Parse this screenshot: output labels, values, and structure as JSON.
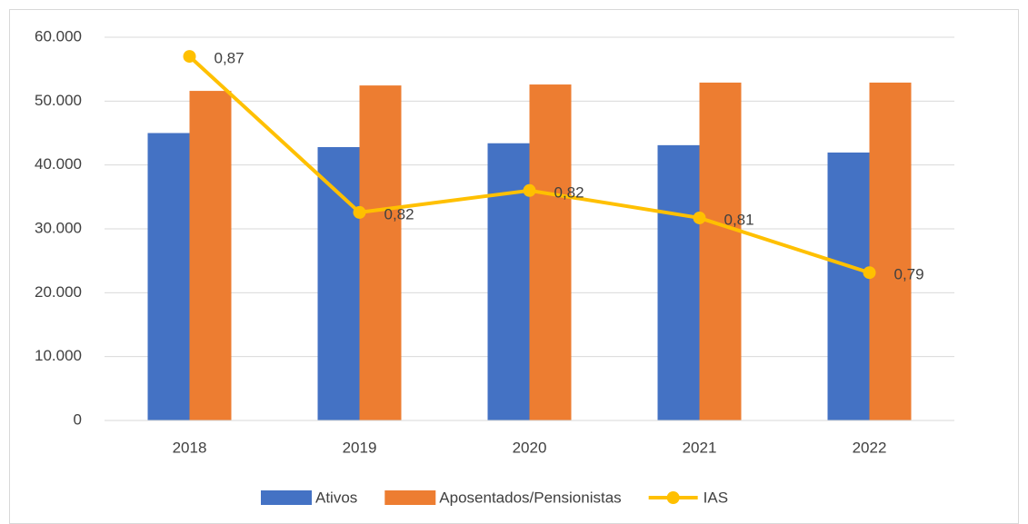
{
  "chart_data": {
    "type": "bar",
    "categories": [
      "2018",
      "2019",
      "2020",
      "2021",
      "2022"
    ],
    "series": [
      {
        "name": "Ativos",
        "color": "#4472c4",
        "values": [
          45000,
          42800,
          43400,
          43100,
          41950
        ]
      },
      {
        "name": "Aposentados/Pensionistas",
        "color": "#ed7d31",
        "values": [
          51600,
          52450,
          52600,
          52900,
          52900
        ]
      },
      {
        "name": "IAS",
        "type": "line",
        "axis": "y2",
        "color": "#ffc000",
        "values": [
          0.873,
          0.816,
          0.824,
          0.814,
          0.794
        ],
        "value_labels": [
          "0,87",
          "0,82",
          "0,82",
          "0,81",
          "0,79"
        ]
      }
    ],
    "ylim": [
      0,
      60000
    ],
    "yticks": [
      0,
      {
        "value": 10000,
        "label": "10.000"
      },
      {
        "value": 20000,
        "label": "20.000"
      },
      {
        "value": 30000,
        "label": "30.000"
      },
      {
        "value": 40000,
        "label": "40.000"
      },
      {
        "value": 50000,
        "label": "50.000"
      },
      {
        "value": 60000,
        "label": "60.000"
      }
    ],
    "y2lim": [
      0.74,
      0.88
    ],
    "grid": true,
    "legend": "bottom"
  }
}
